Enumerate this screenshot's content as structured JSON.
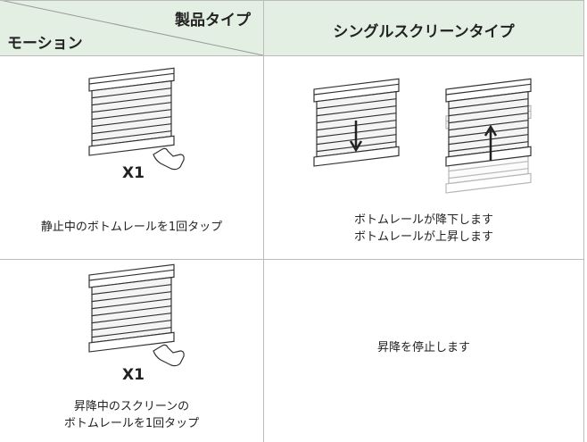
{
  "header": {
    "product_type": "製品タイプ",
    "motion": "モーション",
    "screen_type": "シングルスクリーンタイプ"
  },
  "rows": [
    {
      "x_label": "X1",
      "instruction": "静止中のボトムレールを1回タップ",
      "results": [
        "ボトムレールが降下します",
        "ボトムレールが上昇します"
      ]
    },
    {
      "x_label": "X1",
      "instruction": [
        "昇降中のスクリーンの",
        "ボトムレールを1回タップ"
      ],
      "result": "昇降を停止します"
    }
  ]
}
